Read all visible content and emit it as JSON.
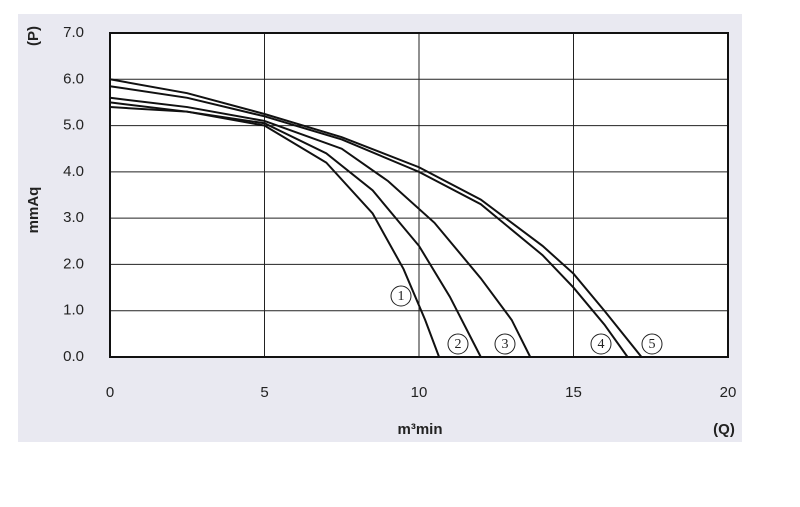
{
  "chart_data": {
    "type": "line",
    "y_label_unit": "(P)",
    "y_label": "mmAq",
    "x_label": "m³min",
    "x_label_unit": "(Q)",
    "xlim": [
      0,
      20
    ],
    "xticks": [
      0,
      5,
      10,
      15,
      20
    ],
    "ylim": [
      0,
      7
    ],
    "yticks": [
      {
        "value": 0,
        "label": "0.0"
      },
      {
        "value": 1,
        "label": "1.0"
      },
      {
        "value": 2,
        "label": "2.0"
      },
      {
        "value": 3,
        "label": "3.0"
      },
      {
        "value": 4,
        "label": "4.0"
      },
      {
        "value": 5,
        "label": "5.0"
      },
      {
        "value": 6,
        "label": "6.0"
      },
      {
        "value": 7,
        "label": "7.0"
      }
    ],
    "grid": true,
    "series": [
      {
        "name": "1",
        "color": "#111111",
        "x": [
          0,
          2.5,
          5,
          7,
          8.5,
          9.5,
          10.2,
          10.65
        ],
        "values": [
          5.4,
          5.3,
          5.0,
          4.2,
          3.1,
          1.9,
          0.8,
          0
        ]
      },
      {
        "name": "2",
        "color": "#111111",
        "x": [
          0,
          2.5,
          5,
          7,
          8.5,
          10,
          11,
          12
        ],
        "values": [
          5.5,
          5.3,
          5.05,
          4.4,
          3.6,
          2.4,
          1.3,
          0
        ]
      },
      {
        "name": "3",
        "color": "#111111",
        "x": [
          0,
          2.5,
          5,
          7.5,
          9,
          10.5,
          12,
          13,
          13.6
        ],
        "values": [
          5.6,
          5.4,
          5.1,
          4.5,
          3.8,
          2.9,
          1.7,
          0.8,
          0
        ]
      },
      {
        "name": "4",
        "color": "#111111",
        "x": [
          0,
          2.5,
          5,
          7.5,
          10,
          12,
          14,
          15,
          16,
          16.75
        ],
        "values": [
          5.85,
          5.6,
          5.2,
          4.7,
          4.0,
          3.3,
          2.2,
          1.5,
          0.7,
          0
        ]
      },
      {
        "name": "5",
        "color": "#111111",
        "x": [
          0,
          2.5,
          5,
          7.5,
          10,
          12,
          14,
          15,
          16,
          17.2
        ],
        "values": [
          6.0,
          5.7,
          5.25,
          4.75,
          4.1,
          3.4,
          2.4,
          1.8,
          1.0,
          0
        ]
      }
    ]
  }
}
